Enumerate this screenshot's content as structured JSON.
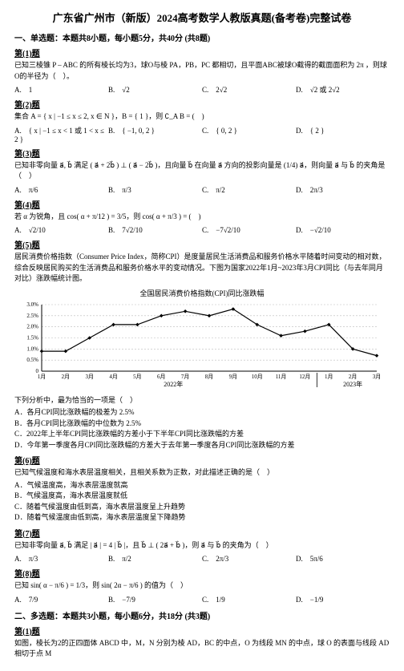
{
  "page_title": "广东省广州市（新版）2024高考数学人教版真题(备考卷)完整试卷",
  "section1": {
    "head": "一、单选题：本题共8小题，每小题5分，共40分 (共8题)",
    "q1": {
      "num": "第(1)题",
      "stem": "已知三棱锥 P – ABC 的所有棱长均为3，球O与棱 PA，PB，PC 都相切，且平面ABC被球O截得的截面面积为 2π ，则球O的半径为（　）。",
      "A": "A.　1",
      "B": "B.　√2",
      "C": "C.　2√2",
      "D": "D.　√2 或 2√2"
    },
    "q2": {
      "num": "第(2)题",
      "stem": "集合 A = { x | −1 ≤ x ≤ 2, x ∈ N }，B = { 1 }，则 ∁_A B = (　)",
      "A": "A.　{ x | −1 ≤ x < 1 或 1 < x ≤ 2 }",
      "B": "B.　{ −1, 0, 2 }",
      "C": "C.　{ 0, 2 }",
      "D": "D.　{ 2 }"
    },
    "q3": {
      "num": "第(3)题",
      "stem": "已知非零向量 a⃗, b⃗ 满足 ( a⃗ + 2b⃗ ) ⊥ ( a⃗ − 2b⃗ )，且向量 b⃗ 在向量 a⃗ 方向的投影向量是 (1/4) a⃗，则向量 a⃗ 与 b⃗ 的夹角是（　）",
      "A": "A.　π/6",
      "B": "B.　π/3",
      "C": "C.　π/2",
      "D": "D.　2π/3"
    },
    "q4": {
      "num": "第(4)题",
      "stem": "若 α 为锐角，且 cos( α + π/12 ) = 3/5，则 cos( α + π/3 ) = (　)",
      "A": "A.　√2/10",
      "B": "B.　7√2/10",
      "C": "C.　−7√2/10",
      "D": "D.　−√2/10"
    },
    "q5": {
      "num": "第(5)题",
      "intro": "居民消费价格指数（Consumer Price Index，简称CPI）是度量居民生活消费品和服务价格水平随着时间变动的相对数，综合反映居民购买的生活消费品和服务价格水平的变动情况。下图为国家2022年1月~2023年3月CPI同比（与去年同月对比）涨跌幅统计图。",
      "chart": {
        "type": "line",
        "title": "全国居民消费价格指数(CPI)同比涨跌幅",
        "x_labels": [
          "1月",
          "2月",
          "3月",
          "4月",
          "5月",
          "6月",
          "7月",
          "8月",
          "9月",
          "10月",
          "11月",
          "12月",
          "1月",
          "2月",
          "3月"
        ],
        "x_year_left": "2022年",
        "x_year_right": "2023年",
        "values": [
          0.9,
          0.9,
          1.5,
          2.1,
          2.1,
          2.5,
          2.7,
          2.5,
          2.8,
          2.1,
          1.6,
          1.8,
          2.1,
          1.0,
          0.7
        ],
        "y_ticks": [
          0,
          0.5,
          1.0,
          1.5,
          2.0,
          2.5,
          3.0
        ],
        "y_labels": [
          "0",
          "0.5%",
          "1.0%",
          "1.5%",
          "2.0%",
          "2.5%",
          "3.0%"
        ],
        "ylim": [
          0,
          3.0
        ],
        "line_color": "#000000",
        "marker": "diamond",
        "marker_fill": "#000000",
        "tick_fontsize": 7,
        "grid_color": "#bbbbbb",
        "background_color": "#ffffff"
      },
      "substem_head": "下列分析中，最为恰当的一项是（　）",
      "sA": "A．各月CPI同比涨跌幅的极差为 2.5%",
      "sB": "B．各月CPI同比涨跌幅的中位数为 2.5%",
      "sC": "C．2022年上半年CPI同比涨跌幅的方差小于下半年CPI同比涨跌幅的方差",
      "sD": "D．今年第一季度各月CPI同比涨跌幅的方差大于去年第一季度各月CPI同比涨跌幅的方差"
    },
    "q6": {
      "num": "第(6)题",
      "stem": "已知气候温度和海水表层温度相关，且相关系数为正数，对此描述正确的是（　）",
      "sA": "A．气候温度高，海水表层温度就高",
      "sB": "B．气候温度高，海水表层温度就低",
      "sC": "C．随着气候温度由低到高，海水表层温度呈上升趋势",
      "sD": "D．随着气候温度由低到高，海水表层温度呈下降趋势"
    },
    "q7": {
      "num": "第(7)题",
      "stem": "已知非零向量 a⃗, b⃗ 满足 | a⃗ | = 4 | b⃗ |，且 b⃗ ⊥ ( 2a⃗ + b⃗ )，则 a⃗ 与 b⃗ 的夹角为（　）",
      "A": "A.　π/3",
      "B": "B.　π/2",
      "C": "C.　2π/3",
      "D": "D.　5π/6"
    },
    "q8": {
      "num": "第(8)题",
      "stem": "已知 sin( α − π/6 ) = 1/3，则 sin( 2α − π/6 ) 的值为（　）",
      "A": "A.　7/9",
      "B": "B.　−7/9",
      "C": "C.　1/9",
      "D": "D.　−1/9"
    }
  },
  "section2": {
    "head": "二、多选题：本题共3小题，每小题6分，共18分 (共3题)",
    "q1": {
      "num": "第(1)题",
      "stem": "如图，棱长为2的正四面体 ABCD 中，M，N 分别为棱 AD，BC 的中点，O 为线段 MN 的中点，球 O 的表面与线段 AD 相切于点 M"
    }
  }
}
